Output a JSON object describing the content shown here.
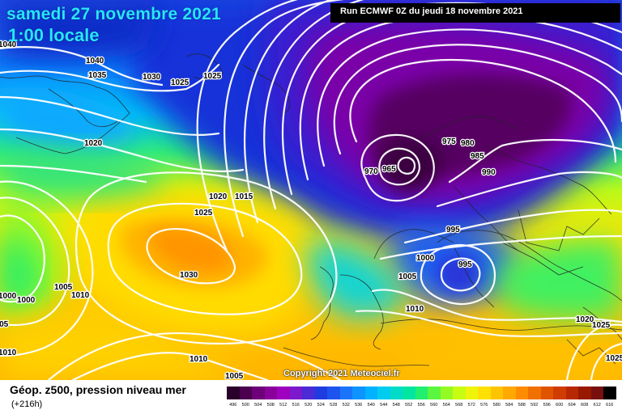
{
  "header": {
    "date": "samedi 27 novembre 2021",
    "local_time": "1:00 locale",
    "run": "Run ECMWF 0Z du jeudi 18 novembre 2021"
  },
  "copyright": "Copyright 2021 Meteociel.fr",
  "legend": {
    "title": "Géop. z500, pression niveau mer",
    "subtitle": "(+216h)",
    "scale_labels": [
      "496",
      "500",
      "504",
      "508",
      "512",
      "516",
      "520",
      "524",
      "528",
      "532",
      "536",
      "540",
      "544",
      "548",
      "552",
      "556",
      "560",
      "564",
      "568",
      "572",
      "576",
      "580",
      "584",
      "588",
      "592",
      "596",
      "600",
      "604",
      "608",
      "612",
      "616"
    ],
    "scale_colors": [
      "#2a002a",
      "#4b0050",
      "#6d0078",
      "#8a009a",
      "#a000c0",
      "#7c19cc",
      "#4a2bd6",
      "#1f3ce0",
      "#1e54ee",
      "#1a74fa",
      "#0e94ff",
      "#00b2ff",
      "#00ccf0",
      "#00dcc8",
      "#00e6a0",
      "#22ee70",
      "#5af640",
      "#95fa22",
      "#c8fc12",
      "#f0f40a",
      "#ffe000",
      "#ffc400",
      "#ffa800",
      "#ff8c00",
      "#f07000",
      "#e05400",
      "#d03c00",
      "#b82800",
      "#981800",
      "#781010",
      "#000000"
    ]
  },
  "map": {
    "isobar_labels": [
      "1040",
      "1040",
      "1035",
      "1030",
      "1025",
      "1025",
      "1020",
      "1020",
      "1015",
      "1025",
      "1030",
      "975",
      "980",
      "985",
      "990",
      "970",
      "965",
      "995",
      "1000",
      "995",
      "1005",
      "1010",
      "1005",
      "1010",
      "1000",
      "1000",
      "1005",
      "1010",
      "1010",
      "1005",
      "1020",
      "1025",
      "1025"
    ]
  }
}
